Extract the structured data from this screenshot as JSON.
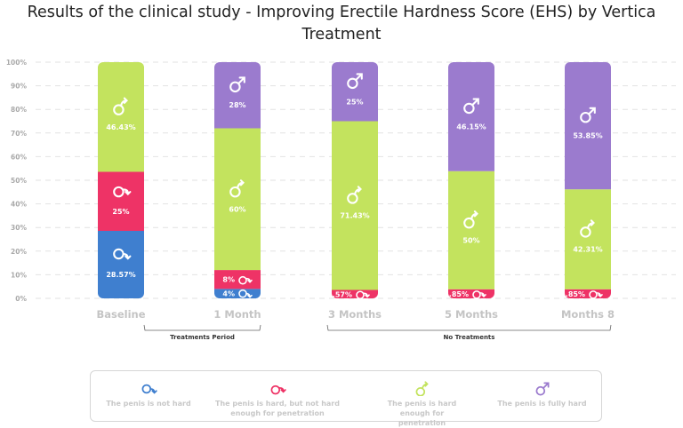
{
  "chart_data": {
    "type": "bar",
    "stacked": true,
    "title": "Results of the clinical study - Improving Erectile Hardness Score (EHS) by Vertica Treatment",
    "categories": [
      "Baseline",
      "1 Month",
      "3 Months",
      "5 Months",
      "Months 8"
    ],
    "ylim": [
      0,
      100
    ],
    "yticks": [
      "0%",
      "10%",
      "20%",
      "30%",
      "40%",
      "50%",
      "60%",
      "70%",
      "80%",
      "90%",
      "100%"
    ],
    "grid": true,
    "legend_position": "bottom",
    "series": [
      {
        "name": "The penis is not hard",
        "color": "#3f7fcf",
        "icon": "male-curled-down-icon",
        "values": [
          28.57,
          4,
          0,
          0,
          0
        ],
        "labels": [
          "28.57%",
          "4%",
          "",
          "",
          ""
        ]
      },
      {
        "name": "The penis is hard, but not hard enough for penetration",
        "color": "#ee3366",
        "icon": "male-curled-icon",
        "values": [
          25,
          8,
          3.57,
          3.85,
          3.85
        ],
        "labels": [
          "25%",
          "8%",
          "3.57%",
          "3.85%",
          "3.85%"
        ]
      },
      {
        "name": "The penis is hard enough for penetration",
        "color": "#c3e35e",
        "icon": "male-bent-icon",
        "values": [
          46.43,
          60,
          71.43,
          50,
          42.31
        ],
        "labels": [
          "46.43%",
          "60%",
          "71.43%",
          "50%",
          "42.31%"
        ]
      },
      {
        "name": "The penis is fully hard",
        "color": "#9b7bce",
        "icon": "male-icon",
        "values": [
          0,
          28,
          25,
          46.15,
          53.85
        ],
        "labels": [
          "",
          "28%",
          "25%",
          "46.15%",
          "53.85%"
        ]
      }
    ],
    "groups": [
      {
        "label": "Treatments Period",
        "categories": [
          "Baseline",
          "1 Month"
        ]
      },
      {
        "label": "No Treatments",
        "categories": [
          "3 Months",
          "5 Months",
          "Months 8"
        ]
      }
    ]
  }
}
